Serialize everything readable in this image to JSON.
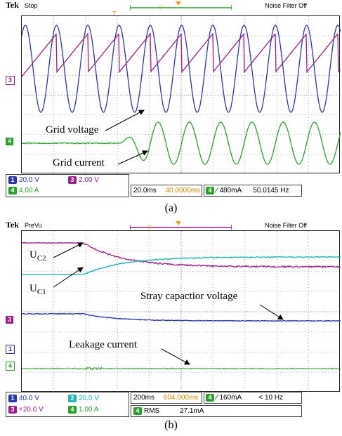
{
  "panel_a": {
    "brand": "Tek",
    "mode": "Stop",
    "noise_filter": "Noise Filter Off",
    "ch3_marker": "3",
    "ch4_marker": "4",
    "annotations": {
      "grid_voltage": "Grid voltage",
      "grid_current": "Grid current"
    },
    "readout": {
      "ch1_num": "1",
      "ch1_scale": "20.0 V",
      "ch3_num": "3",
      "ch3_scale": "2.00 V",
      "ch4_num": "4",
      "ch4_scale": "4.00 A",
      "timebase": "20.0ms",
      "trigger_pos": "40.0000ms",
      "trig_ch": "4",
      "trig_level": "∕ 480mA",
      "freq": "50.0145 Hz"
    },
    "caption": "(a)"
  },
  "panel_b": {
    "brand": "Tek",
    "mode": "PreVu",
    "noise_filter": "Noise Filter Off",
    "ch3_marker": "3",
    "ch1_marker": "1",
    "ch4_marker": "4",
    "annotations": {
      "uc2": "U",
      "uc2_sub": "C2",
      "uc1": "U",
      "uc1_sub": "C1",
      "stray": "Stray capactior voltage",
      "leakage": "Leakage current"
    },
    "readout": {
      "ch1_num": "1",
      "ch1_scale": "40.0 V",
      "ch2_num": "2",
      "ch2_scale": "20.0 V",
      "ch3_num": "3",
      "ch3_scale": "+20.0 V",
      "ch4_num": "4",
      "ch4_scale": "1.00 A",
      "timebase": "200ms",
      "trigger_pos": "604.000ms",
      "trig_ch": "4",
      "trig_level": "∕ 160mA",
      "freq": "< 10 Hz",
      "rms_ch": "4",
      "rms_label": "RMS",
      "rms_value": "27.1mA"
    },
    "caption": "(b)"
  },
  "colors": {
    "ch1": "#2a36b0",
    "ch2": "#1fb5b5",
    "ch3": "#9a1f8a",
    "ch4": "#2aa02a",
    "trigger": "#f0a020"
  }
}
